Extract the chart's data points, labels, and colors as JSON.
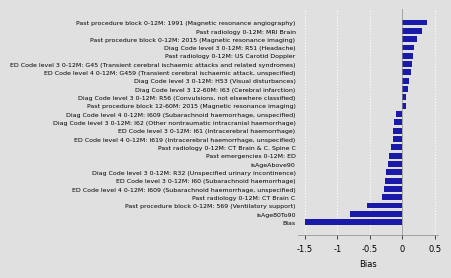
{
  "labels": [
    "Past procedure block 0-12M: 1991 (Magnetic resonance angiography)",
    "Past radiology 0-12M: MRI Brain",
    "Past procedure block 0-12M: 2015 (Magnetic resonance imaging)",
    "Diag Code level 3 0-12M: R51 (Headache)",
    "Past radiology 0-12M: US Carotid Doppler",
    "ED Code level 3 0-12M: G45 (Transient cerebral ischaemic attacks and related syndromes)",
    "ED Code level 4 0-12M: G459 (Transient cerebral ischaemic attack, unspecified)",
    "Diag Code level 3 0-12M: H53 (Visual disturbances)",
    "Diag Code level 3 12-60M: I63 (Cerebral infarction)",
    "Diag Code level 3 0-12M: R56 (Convulsions, not elsewhere classified)",
    "Past procedure block 12-60M: 2015 (Magnetic resonance imaging)",
    "Diag Code level 4 0-12M: I609 (Subarachnoid haemorrhage, unspecified)",
    "Diag Code level 3 0-12M: I62 (Other nontraumatic intracranial haemorrhage)",
    "ED Code level 3 0-12M: I61 (Intracerebral haemorrhage)",
    "ED Code level 4 0-12M: I619 (Intracerebral haemorrhage, unspecified)",
    "Past radiology 0-12M: CT Brain & C. Spine C",
    "Past emergencies 0-12M: ED",
    "isAgeAbove90",
    "Diag Code level 3 0-12M: R32 (Unspecified urinary incontinence)",
    "ED Code level 3 0-12M: I60 (Subarachnoid haemorrhage)",
    "ED Code level 4 0-12M: I609 (Subarachnoid haemorrhage, unspecified)",
    "Past radiology 0-12M: CT Brain C",
    "Past procedure block 0-12M: 569 (Ventilatory support)",
    "isAge80To90",
    "Bias"
  ],
  "values": [
    0.38,
    0.3,
    0.22,
    0.18,
    0.16,
    0.14,
    0.13,
    0.1,
    0.08,
    0.06,
    0.05,
    -0.1,
    -0.13,
    -0.14,
    -0.15,
    -0.17,
    -0.2,
    -0.22,
    -0.25,
    -0.27,
    -0.29,
    -0.31,
    -0.55,
    -0.8,
    -1.5
  ],
  "bar_color": "#1a1aaa",
  "xlabel": "Bias",
  "xlim": [
    -1.6,
    0.55
  ],
  "xticks": [
    -1.5,
    -1.0,
    -0.5,
    0.0,
    0.5
  ],
  "background_color": "#e0e0e0",
  "grid_color": "#ffffff",
  "label_fontsize": 4.5,
  "tick_fontsize": 6
}
